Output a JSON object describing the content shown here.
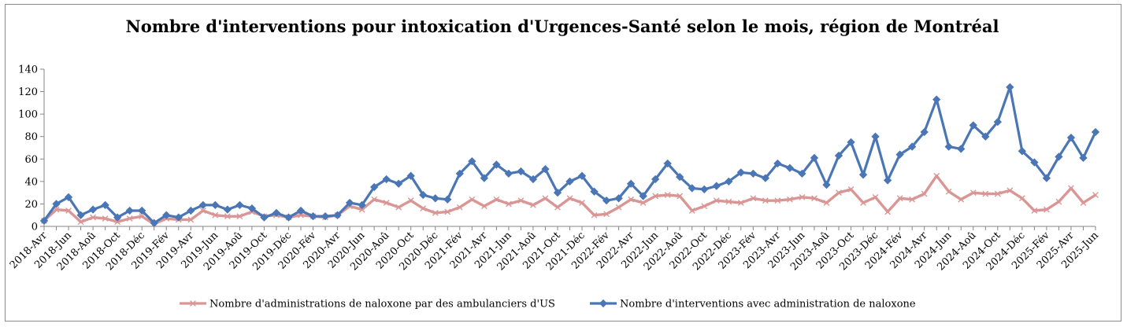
{
  "chart_data": {
    "type": "line",
    "title": "Nombre d'interventions pour intoxication d'Urgences-Santé selon le mois, région de Montréal",
    "xlabel": "",
    "ylabel": "",
    "ylim": [
      0,
      140
    ],
    "yticks": [
      0,
      20,
      40,
      60,
      80,
      100,
      120,
      140
    ],
    "grid": "none",
    "legend_position": "bottom",
    "categories": [
      "2018-Avr",
      "2018-Mai",
      "2018-Jun",
      "2018-Jul",
      "2018-Aoû",
      "2018-Sep",
      "2018-Oct",
      "2018-Nov",
      "2018-Déc",
      "2019-Jan",
      "2019-Fév",
      "2019-Mar",
      "2019-Avr",
      "2019-Mai",
      "2019-Jun",
      "2019-Jul",
      "2019-Aoû",
      "2019-Sep",
      "2019-Oct",
      "2019-Nov",
      "2019-Déc",
      "2020-Jan",
      "2020-Fév",
      "2020-Mar",
      "2020-Avr",
      "2020-Mai",
      "2020-Jun",
      "2020-Jul",
      "2020-Aoû",
      "2020-Sep",
      "2020-Oct",
      "2020-Nov",
      "2020-Déc",
      "2021-Jan",
      "2021-Fév",
      "2021-Mar",
      "2021-Avr",
      "2021-Mai",
      "2021-Jun",
      "2021-Jul",
      "2021-Aoû",
      "2021-Sep",
      "2021-Oct",
      "2021-Nov",
      "2021-Déc",
      "2022-Jan",
      "2022-Fév",
      "2022-Mar",
      "2022-Avr",
      "2022-Mai",
      "2022-Jun",
      "2022-Jul",
      "2022-Aoû",
      "2022-Sep",
      "2022-Oct",
      "2022-Nov",
      "2022-Déc",
      "2023-Jan",
      "2023-Fév",
      "2023-Mar",
      "2023-Avr",
      "2023-Mai",
      "2023-Jun",
      "2023-Jul",
      "2023-Aoû",
      "2023-Sep",
      "2023-Oct",
      "2023-Nov",
      "2023-Déc",
      "2024-Jan",
      "2024-Fév",
      "2024-Mar",
      "2024-Avr",
      "2024-Mai",
      "2024-Jun",
      "2024-Jul",
      "2024-Aoû",
      "2024-Sep",
      "2024-Oct",
      "2024-Nov",
      "2024-Déc",
      "2025-Jan",
      "2025-Fév",
      "2025-Mar",
      "2025-Avr",
      "2025-Mai",
      "2025-Jun"
    ],
    "tick_labels": [
      "2018-Avr",
      "2018-Jun",
      "2018-Aoû",
      "2018-Oct",
      "2018-Déc",
      "2019-Fév",
      "2019-Avr",
      "2019-Jun",
      "2019-Aoû",
      "2019-Oct",
      "2019-Déc",
      "2020-Fév",
      "2020-Avr",
      "2020-Jun",
      "2020-Aoû",
      "2020-Oct",
      "2020-Déc",
      "2021-Fév",
      "2021-Avr",
      "2021-Jun",
      "2021-Aoû",
      "2021-Oct",
      "2021-Déc",
      "2022-Fév",
      "2022-Avr",
      "2022-Jun",
      "2022-Aoû",
      "2022-Oct",
      "2022-Déc",
      "2023-Fév",
      "2023-Avr",
      "2023-Jun",
      "2023-Aoû",
      "2023-Oct",
      "2023-Déc",
      "2024-Fév",
      "2024-Avr",
      "2024-Jun",
      "2024-Aoû",
      "2024-Oct",
      "2024-Déc",
      "2025-Fév",
      "2025-Avr",
      "2025-Jun"
    ],
    "series": [
      {
        "name": "Nombre d'administrations de naloxone par des ambulanciers d'US",
        "color": "#d99694",
        "marker": "x",
        "values": [
          5,
          15,
          14,
          4,
          8,
          7,
          4,
          7,
          9,
          2,
          7,
          6,
          6,
          14,
          10,
          9,
          9,
          13,
          9,
          10,
          8,
          10,
          9,
          8,
          10,
          18,
          15,
          24,
          21,
          17,
          23,
          16,
          12,
          13,
          17,
          24,
          18,
          24,
          20,
          23,
          19,
          25,
          17,
          25,
          21,
          10,
          11,
          17,
          24,
          21,
          27,
          28,
          27,
          14,
          18,
          23,
          22,
          21,
          25,
          23,
          23,
          24,
          26,
          25,
          21,
          30,
          33,
          21,
          26,
          13,
          25,
          24,
          29,
          45,
          31,
          24,
          30,
          29,
          29,
          32,
          25,
          14,
          15,
          22,
          34,
          21,
          28
        ]
      },
      {
        "name": "Nombre d'interventions avec administration de naloxone",
        "color": "#4a76b6",
        "marker": "diamond",
        "values": [
          5,
          20,
          26,
          10,
          15,
          19,
          8,
          14,
          14,
          3,
          10,
          8,
          14,
          19,
          19,
          15,
          19,
          16,
          8,
          12,
          8,
          14,
          9,
          9,
          10,
          21,
          19,
          35,
          42,
          38,
          45,
          28,
          25,
          24,
          47,
          58,
          43,
          55,
          47,
          49,
          42,
          51,
          30,
          40,
          45,
          31,
          23,
          25,
          38,
          27,
          42,
          56,
          44,
          34,
          33,
          36,
          40,
          48,
          47,
          43,
          56,
          52,
          47,
          61,
          37,
          63,
          75,
          46,
          80,
          41,
          64,
          71,
          84,
          113,
          71,
          69,
          90,
          80,
          93,
          124,
          67,
          57,
          43,
          62,
          79,
          61,
          84
        ]
      }
    ]
  }
}
